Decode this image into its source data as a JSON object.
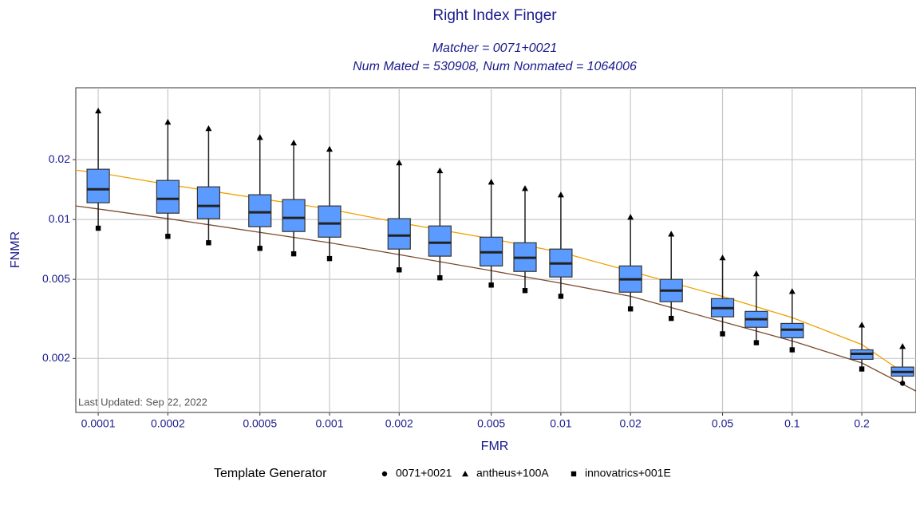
{
  "chart_data": {
    "type": "box",
    "title": "Right Index Finger",
    "subtitle": [
      "Matcher = 0071+0021",
      "Num Mated = 530908, Num Nonmated = 1064006"
    ],
    "x_label": "FMR",
    "y_label": "FNMR",
    "annotation": "Last Updated: Sep 22, 2022",
    "legend_title": "Template Generator",
    "xlog": true,
    "ylog": true,
    "grid": true,
    "xlim": [
      8e-05,
      0.343
    ],
    "ylim": [
      0.00107,
      0.046
    ],
    "xticks": [
      0.0001,
      0.0002,
      0.0005,
      0.001,
      0.002,
      0.005,
      0.01,
      0.02,
      0.05,
      0.1,
      0.2
    ],
    "yticks": [
      0.002,
      0.005,
      0.01,
      0.02
    ],
    "boxes": {
      "color": "#5b9bff",
      "x": [
        0.0001,
        0.0002,
        0.0003,
        0.0005,
        0.0007,
        0.001,
        0.002,
        0.003,
        0.005,
        0.007,
        0.01,
        0.02,
        0.03,
        0.05,
        0.07,
        0.1,
        0.2,
        0.3
      ],
      "q3": [
        0.0179,
        0.01572,
        0.0146,
        0.01332,
        0.0126,
        0.0117,
        0.0101,
        0.00928,
        0.00815,
        0.00764,
        0.0071,
        0.00584,
        0.005,
        0.004,
        0.00345,
        0.003,
        0.00221,
        0.00181
      ],
      "median": [
        0.0142,
        0.01271,
        0.0117,
        0.01087,
        0.01019,
        0.00955,
        0.0083,
        0.00764,
        0.00684,
        0.00642,
        0.00601,
        0.005,
        0.00439,
        0.00358,
        0.00315,
        0.00279,
        0.00211,
        0.00171
      ],
      "q1": [
        0.01214,
        0.01076,
        0.0101,
        0.0092,
        0.0087,
        0.00815,
        0.0071,
        0.00654,
        0.00584,
        0.00548,
        0.00514,
        0.00431,
        0.00386,
        0.00324,
        0.00287,
        0.00254,
        0.00198,
        0.00163
      ]
    },
    "series": [
      {
        "name": "0071+0021",
        "shape": "circle",
        "values": [
          0.0142,
          0.01271,
          0.0117,
          0.01087,
          0.01019,
          0.00955,
          0.0083,
          0.00764,
          0.00684,
          0.00642,
          0.00601,
          0.005,
          0.00439,
          0.00358,
          0.00315,
          0.00279,
          0.00211,
          0.0015
        ]
      },
      {
        "name": "antheus+100A",
        "shape": "triangle",
        "values": [
          0.0352,
          0.0309,
          0.0287,
          0.0259,
          0.0243,
          0.0226,
          0.0193,
          0.0176,
          0.01544,
          0.01434,
          0.01332,
          0.01028,
          0.00846,
          0.00642,
          0.00534,
          0.00435,
          0.00295,
          0.0023
        ]
      },
      {
        "name": "innovatrics+001E",
        "shape": "square",
        "values": [
          0.00904,
          0.00823,
          0.00764,
          0.00716,
          0.00672,
          0.00636,
          0.00558,
          0.00509,
          0.00468,
          0.00439,
          0.00411,
          0.00355,
          0.00318,
          0.00266,
          0.0024,
          0.00221,
          0.00177,
          0.00168
        ]
      }
    ],
    "curves": [
      {
        "color": "#f0a000",
        "x": [
          8e-05,
          0.0001,
          0.0002,
          0.001,
          0.002,
          0.005,
          0.01,
          0.02,
          0.05,
          0.1,
          0.2,
          0.3
        ],
        "values": [
          0.0177,
          0.0172,
          0.015,
          0.01128,
          0.00964,
          0.008,
          0.00684,
          0.00549,
          0.0041,
          0.00321,
          0.00235,
          0.00171
        ]
      },
      {
        "color": "#7b4a2e",
        "x": [
          8e-05,
          0.0001,
          0.0002,
          0.001,
          0.002,
          0.005,
          0.01,
          0.02,
          0.05,
          0.1,
          0.2,
          0.343
        ],
        "values": [
          0.0117,
          0.0113,
          0.0101,
          0.00764,
          0.00666,
          0.00553,
          0.00478,
          0.00411,
          0.00306,
          0.00245,
          0.0019,
          0.00137
        ]
      }
    ]
  }
}
